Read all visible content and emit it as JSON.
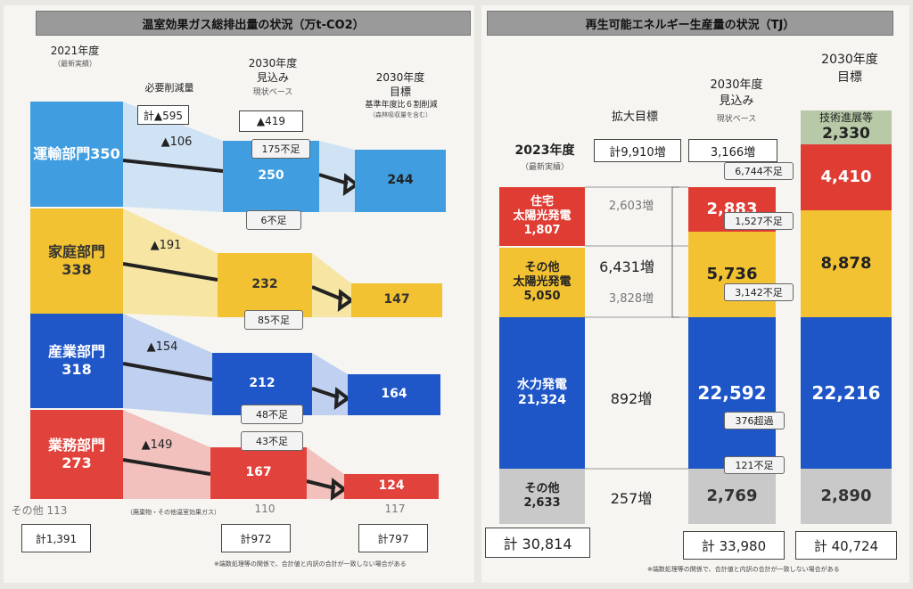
{
  "left": {
    "title": "温室効果ガス総排出量の状況（万t-CO2）",
    "col_2021": {
      "year": "2021年度",
      "sub": "（最新実績）"
    },
    "col_reduction": {
      "head": "必要削減量",
      "total": "計▲595"
    },
    "col_2030_proj": {
      "year": "2030年度",
      "head": "見込み",
      "sub": "現状ベース",
      "total": "▲419"
    },
    "col_2030_target": {
      "year": "2030年度",
      "head": "目標",
      "sub": "基準年度比６割削減",
      "sub2": "（森林吸収量を含む）"
    },
    "sectors": [
      {
        "name": "運輸部門",
        "v2021": "350",
        "reduction": "▲106",
        "proj": "250",
        "target": "244",
        "shortfall": "6不足",
        "color": "#3f9de0"
      },
      {
        "name": "家庭部門",
        "v2021": "338",
        "reduction": "▲191",
        "proj": "232",
        "target": "147",
        "shortfall": "85不足",
        "color": "#f2c233"
      },
      {
        "name": "産業部門",
        "v2021": "318",
        "reduction": "▲154",
        "proj": "212",
        "target": "164",
        "shortfall": "48不足",
        "color": "#1f57c8"
      },
      {
        "name": "業務部門",
        "v2021": "273",
        "reduction": "▲149",
        "proj": "167",
        "target": "124",
        "shortfall": "43不足",
        "color": "#e2423c"
      }
    ],
    "extra_callout": "175不足",
    "other": {
      "label": "その他 113",
      "proj": "110",
      "target": "117",
      "note": "（廃棄物・その他温室効果ガス）"
    },
    "totals": {
      "v2021": "計1,391",
      "proj": "計972",
      "target": "計797"
    },
    "footnote": "※端数処理等の関係で、合計値と内訳の合計が一致しない場合がある"
  },
  "right": {
    "title": "再生可能エネルギー生産量の状況（TJ）",
    "col_2023": {
      "year": "2023年度",
      "sub": "（最新実績）"
    },
    "col_expand": {
      "head": "拡大目標",
      "total": "計9,910増"
    },
    "col_2030_proj": {
      "year": "2030年度",
      "head": "見込み",
      "sub": "現状ベース",
      "total": "3,166増",
      "shortfall": "6,744不足"
    },
    "col_2030_target": {
      "year": "2030年度",
      "head": "目標"
    },
    "tech": {
      "label": "技術進展等",
      "value": "2,330"
    },
    "rows": [
      {
        "name": "住宅\n太陽光発電",
        "v2023": "1,807",
        "increase": "2,603増",
        "proj": "2,883",
        "target": "4,410",
        "shortfall": "1,527不足",
        "color": "#df3d34"
      },
      {
        "name": "その他\n太陽光発電",
        "v2023": "5,050",
        "increase": "3,828増",
        "proj": "5,736",
        "target": "8,878",
        "shortfall": "3,142不足",
        "color": "#f2c233"
      },
      {
        "name": "水力発電",
        "v2023": "21,324",
        "increase": "892増",
        "proj": "22,592",
        "target": "22,216",
        "shortfall": "376超過",
        "color": "#1e56c8"
      },
      {
        "name": "その他",
        "v2023": "2,633",
        "increase": "257増",
        "proj": "2,769",
        "target": "2,890",
        "shortfall": "121不足",
        "color": "#c9c9c9"
      }
    ],
    "solar_increase": "6,431増",
    "totals": {
      "v2023": "計 30,814",
      "proj": "計 33,980",
      "target": "計 40,724"
    },
    "footnote": "※端数処理等の関係で、合計値と内訳の合計が一致しない場合がある"
  },
  "chart_data": [
    {
      "type": "bar",
      "title": "温室効果ガス総排出量の状況（万t-CO2）",
      "categories": [
        "2021年度",
        "2030年度 見込み",
        "2030年度 目標"
      ],
      "series": [
        {
          "name": "運輸部門",
          "values": [
            350,
            250,
            244
          ]
        },
        {
          "name": "家庭部門",
          "values": [
            338,
            232,
            147
          ]
        },
        {
          "name": "産業部門",
          "values": [
            318,
            212,
            164
          ]
        },
        {
          "name": "業務部門",
          "values": [
            273,
            167,
            124
          ]
        },
        {
          "name": "その他",
          "values": [
            113,
            110,
            117
          ]
        }
      ],
      "totals": [
        1391,
        972,
        797
      ]
    },
    {
      "type": "bar",
      "title": "再生可能エネルギー生産量の状況（TJ）",
      "categories": [
        "2023年度",
        "2030年度 見込み",
        "2030年度 目標"
      ],
      "series": [
        {
          "name": "住宅太陽光発電",
          "values": [
            1807,
            2883,
            4410
          ]
        },
        {
          "name": "その他太陽光発電",
          "values": [
            5050,
            5736,
            8878
          ]
        },
        {
          "name": "水力発電",
          "values": [
            21324,
            22592,
            22216
          ]
        },
        {
          "name": "その他",
          "values": [
            2633,
            2769,
            2890
          ]
        },
        {
          "name": "技術進展等",
          "values": [
            0,
            0,
            2330
          ]
        }
      ],
      "totals": [
        30814,
        33980,
        40724
      ]
    }
  ]
}
